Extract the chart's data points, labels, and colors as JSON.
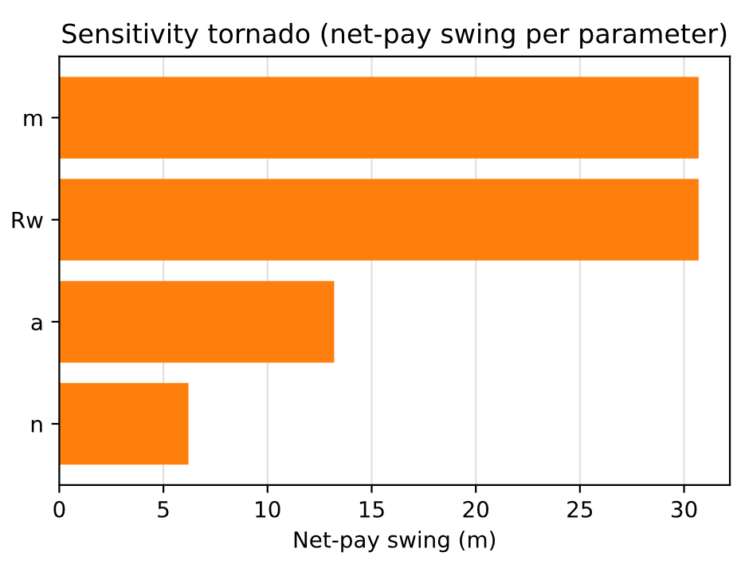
{
  "chart_data": {
    "type": "bar",
    "orientation": "horizontal",
    "title": "Sensitivity tornado (net-pay swing per parameter)",
    "xlabel": "Net-pay swing (m)",
    "categories": [
      "m",
      "Rw",
      "a",
      "n"
    ],
    "values": [
      30.7,
      30.7,
      13.2,
      6.2
    ],
    "color": "#ff7f0e",
    "xlim": [
      0,
      32.2
    ],
    "xticks": [
      0,
      5,
      10,
      15,
      20,
      25,
      30
    ],
    "grid": "x"
  }
}
